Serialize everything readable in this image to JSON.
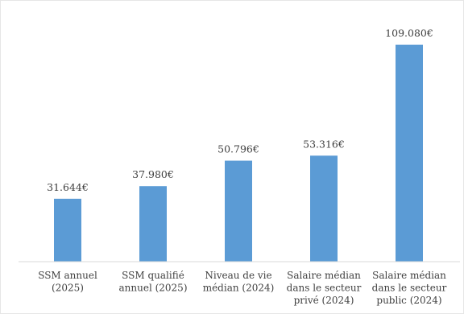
{
  "chart_data": {
    "type": "bar",
    "categories": [
      [
        "SSM annuel",
        "(2025)"
      ],
      [
        "SSM qualifié",
        "annuel (2025)"
      ],
      [
        "Niveau de vie",
        "médian (2024)"
      ],
      [
        "Salaire médian",
        "dans le secteur",
        "privé (2024)"
      ],
      [
        "Salaire médian",
        "dans le secteur",
        "public (2024)"
      ]
    ],
    "values": [
      31644,
      37980,
      50796,
      53316,
      109080
    ],
    "value_labels": [
      "31.644€",
      "37.980€",
      "50.796€",
      "53.316€",
      "109.080€"
    ],
    "title": "",
    "xlabel": "",
    "ylabel": "",
    "ylim": [
      0,
      115000
    ],
    "grid": false,
    "bar_color": "#5b9bd5",
    "axis_color": "#d9d9d9",
    "text_color": "#404040"
  }
}
